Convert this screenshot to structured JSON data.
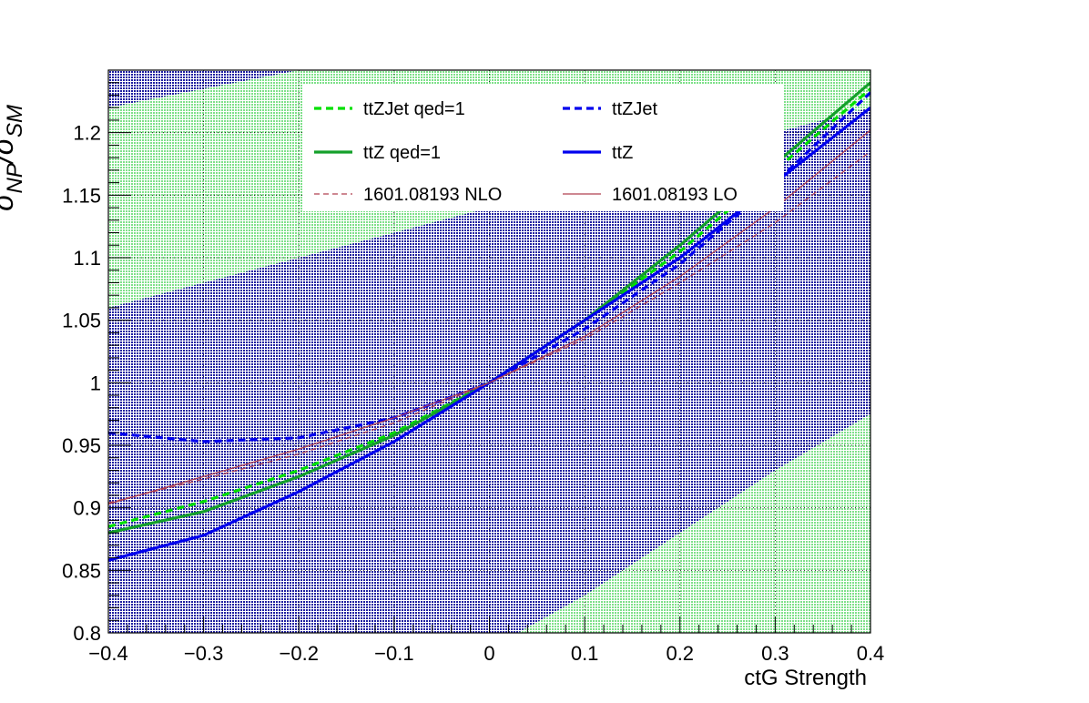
{
  "chart_data": {
    "type": "line",
    "title": "",
    "xlabel": "ctG Strength",
    "ylabel": "σ_NP/σ_SM",
    "ylabel_parts": {
      "main1": "σ",
      "sub1": "NP",
      "slash": "/",
      "main2": "σ",
      "sub2": "SM"
    },
    "xlim": [
      -0.4,
      0.4
    ],
    "ylim": [
      0.8,
      1.25
    ],
    "x_ticks": [
      "−0.4",
      "−0.3",
      "−0.2",
      "−0.1",
      "0",
      "0.1",
      "0.2",
      "0.3",
      "0.4"
    ],
    "y_ticks": [
      "0.8",
      "0.85",
      "0.9",
      "0.95",
      "1",
      "1.05",
      "1.1",
      "1.15",
      "1.2"
    ],
    "grid": true,
    "legend_position": "top",
    "colors": {
      "background_hatch": "#1f1fa0",
      "band": "#7fe08a",
      "green": "#00e000",
      "green_dark": "#14a02a",
      "blue": "#0000ee",
      "red": "#b04050"
    },
    "bands": [
      {
        "name": "upper",
        "x": [
          -0.4,
          -0.2,
          0.0,
          0.2,
          0.4
        ],
        "y_low": [
          1.06,
          1.1,
          1.14,
          1.18,
          1.22
        ],
        "y_high": [
          1.22,
          1.25,
          1.25,
          1.25,
          1.25
        ]
      },
      {
        "name": "lower",
        "x": [
          0.03,
          0.1,
          0.2,
          0.3,
          0.4
        ],
        "y_low": [
          0.8,
          0.8,
          0.8,
          0.8,
          0.8
        ],
        "y_high": [
          0.8,
          0.83,
          0.88,
          0.93,
          0.975
        ]
      }
    ],
    "series": [
      {
        "name": "ttZJet qed=1",
        "style": "dashed-thick",
        "color": "#00e000",
        "x": [
          -0.4,
          -0.3,
          -0.2,
          -0.1,
          0.0,
          0.1,
          0.2,
          0.3,
          0.4
        ],
        "y": [
          0.885,
          0.905,
          0.93,
          0.96,
          1.0,
          1.05,
          1.105,
          1.17,
          1.235
        ]
      },
      {
        "name": "ttZJet",
        "style": "dashed-thick",
        "color": "#0000ee",
        "x": [
          -0.4,
          -0.3,
          -0.2,
          -0.1,
          0.0,
          0.1,
          0.2,
          0.3,
          0.4
        ],
        "y": [
          0.96,
          0.953,
          0.956,
          0.972,
          1.0,
          1.043,
          1.095,
          1.16,
          1.232
        ]
      },
      {
        "name": "ttZ qed=1",
        "style": "solid-thick",
        "color": "#14a02a",
        "x": [
          -0.4,
          -0.3,
          -0.2,
          -0.1,
          0.0,
          0.1,
          0.2,
          0.3,
          0.4
        ],
        "y": [
          0.88,
          0.897,
          0.925,
          0.958,
          1.0,
          1.05,
          1.11,
          1.175,
          1.24
        ]
      },
      {
        "name": "ttZ",
        "style": "solid-thick",
        "color": "#0000ee",
        "x": [
          -0.4,
          -0.3,
          -0.2,
          -0.1,
          0.0,
          0.1,
          0.2,
          0.3,
          0.4
        ],
        "y": [
          0.858,
          0.878,
          0.913,
          0.953,
          1.0,
          1.05,
          1.1,
          1.16,
          1.22
        ]
      },
      {
        "name": "1601.08193 NLO",
        "style": "dashed-thin",
        "color": "#b04050",
        "x": [
          -0.4,
          -0.3,
          -0.2,
          -0.1,
          0.0,
          0.1,
          0.2,
          0.3,
          0.4
        ],
        "y": [
          0.904,
          0.923,
          0.943,
          0.968,
          1.0,
          1.035,
          1.08,
          1.128,
          1.185
        ]
      },
      {
        "name": "1601.08193 LO",
        "style": "solid-thin",
        "color": "#b04050",
        "x": [
          -0.4,
          -0.3,
          -0.2,
          -0.1,
          0.0,
          0.1,
          0.2,
          0.3,
          0.4
        ],
        "y": [
          0.903,
          0.925,
          0.947,
          0.972,
          1.0,
          1.037,
          1.085,
          1.14,
          1.202
        ]
      }
    ]
  }
}
